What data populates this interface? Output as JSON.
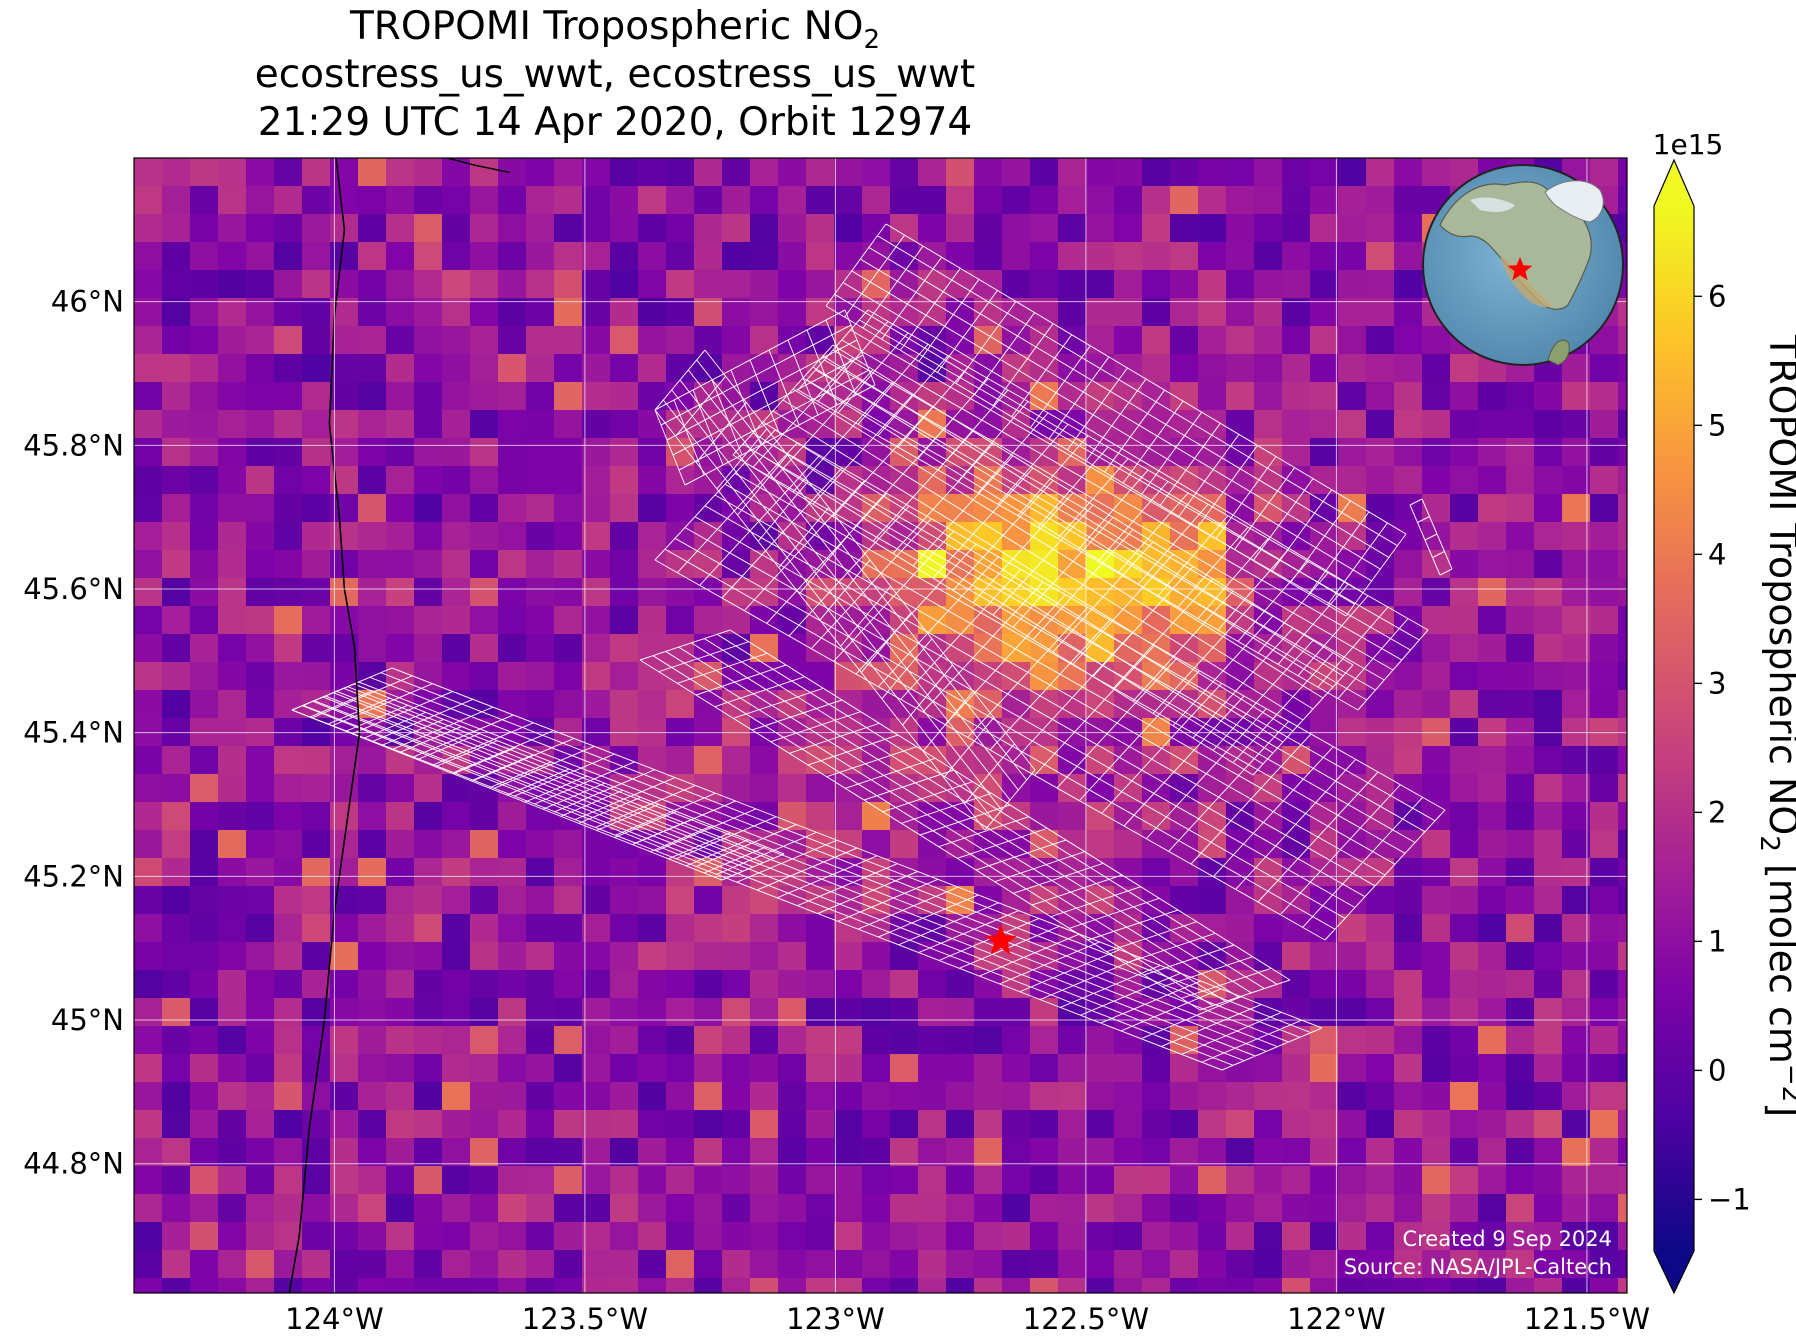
{
  "title": {
    "line1_main": "TROPOMI Tropospheric NO",
    "line1_sub": "2",
    "line2": "ecostress_us_wwt, ecostress_us_wwt",
    "line3": "21:29 UTC 14 Apr 2020, Orbit 12974"
  },
  "map": {
    "lon_range": [
      -124.4,
      -121.42
    ],
    "lat_range": [
      44.62,
      46.2
    ],
    "x_ticks": [
      {
        "value": -124.0,
        "label": "124°W"
      },
      {
        "value": -123.5,
        "label": "123.5°W"
      },
      {
        "value": -123.0,
        "label": "123°W"
      },
      {
        "value": -122.5,
        "label": "122.5°W"
      },
      {
        "value": -122.0,
        "label": "122°W"
      },
      {
        "value": -121.5,
        "label": "121.5°W"
      }
    ],
    "y_ticks": [
      {
        "value": 44.8,
        "label": "44.8°N"
      },
      {
        "value": 45.0,
        "label": "45°N"
      },
      {
        "value": 45.2,
        "label": "45.2°N"
      },
      {
        "value": 45.4,
        "label": "45.4°N"
      },
      {
        "value": 45.6,
        "label": "45.6°N"
      },
      {
        "value": 45.8,
        "label": "45.8°N"
      },
      {
        "value": 46.0,
        "label": "46°N"
      }
    ],
    "grid": true,
    "target_marker": {
      "lon": -122.67,
      "lat": 45.11,
      "color": "#ff0000",
      "shape": "star"
    },
    "colormap": "plasma",
    "hotspot": {
      "lon": -122.55,
      "lat": 45.62,
      "peak": 6.2
    },
    "background_level": 1.0,
    "inset_globe": "orthographic globe with red star over the US Pacific Northwest"
  },
  "colorbar": {
    "label_main": "TROPOMI Tropospheric NO",
    "label_sub": "2",
    "label_unit_open": " [molec cm",
    "label_sup": "−2",
    "label_close": "]",
    "exponent_label": "1e15",
    "range": [
      -1.4,
      6.7
    ],
    "ticks": [
      {
        "value": -1,
        "label": "−1"
      },
      {
        "value": 0,
        "label": "0"
      },
      {
        "value": 1,
        "label": "1"
      },
      {
        "value": 2,
        "label": "2"
      },
      {
        "value": 3,
        "label": "3"
      },
      {
        "value": 4,
        "label": "4"
      },
      {
        "value": 5,
        "label": "5"
      },
      {
        "value": 6,
        "label": "6"
      }
    ],
    "extend": "both"
  },
  "credits": {
    "created": "Created 9 Sep 2024",
    "source": "Source: NASA/JPL-Caltech"
  }
}
